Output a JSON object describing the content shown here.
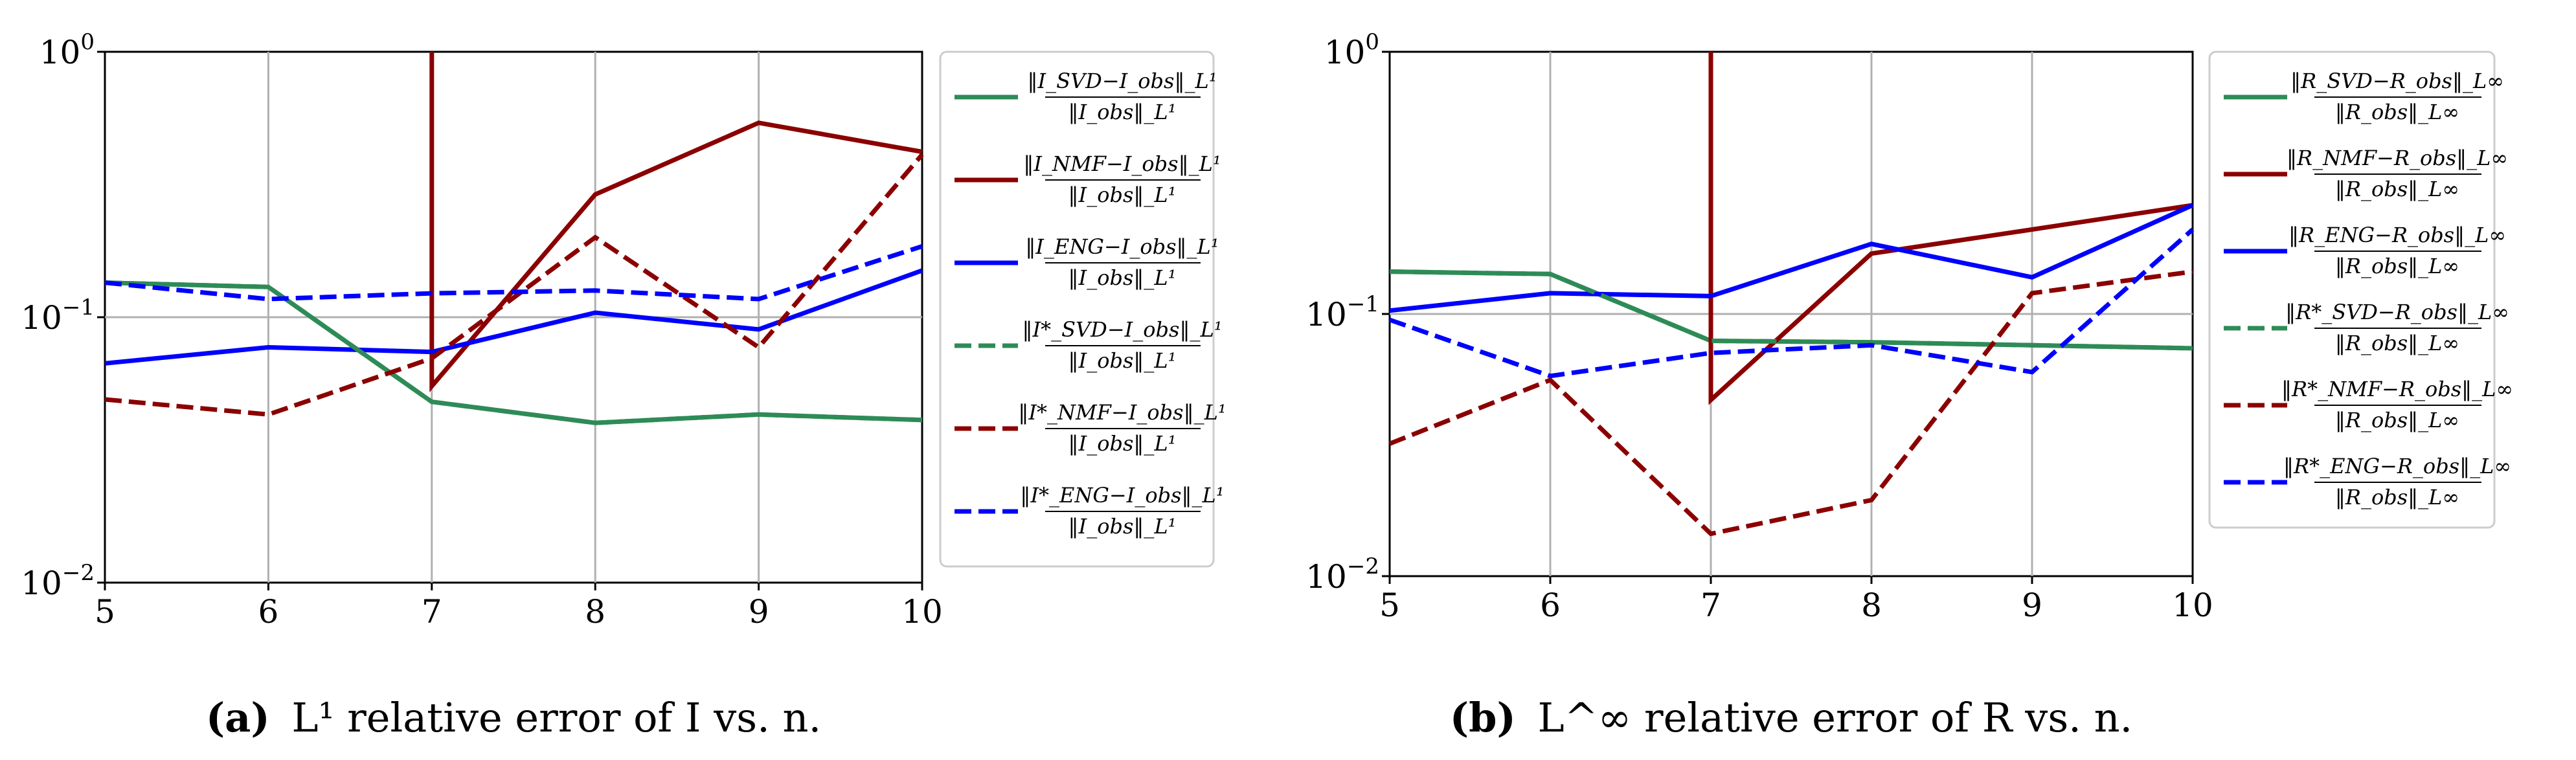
{
  "chart_data": [
    {
      "type": "line",
      "x": [
        5,
        6,
        7,
        8,
        9,
        10
      ],
      "yscale": "log",
      "ylim": [
        0.01,
        1
      ],
      "xlim": [
        5,
        10
      ],
      "yticks": [
        {
          "exp": "0",
          "value": 1
        },
        {
          "exp": "−1",
          "value": 0.1
        },
        {
          "exp": "−2",
          "value": 0.01
        }
      ],
      "xticks": [
        "5",
        "6",
        "7",
        "8",
        "9",
        "10"
      ],
      "grid": true,
      "legend_position": "outside-right",
      "caption": {
        "label": "(a)",
        "text": "L¹ relative error of I vs. n."
      },
      "series": [
        {
          "name": "‖I_SVD − I_obs‖_L¹ / ‖I_obs‖_L¹",
          "color": "#2e8b57",
          "style": "solid",
          "values": [
            0.135,
            0.13,
            0.048,
            0.04,
            0.043,
            0.041
          ]
        },
        {
          "name": "‖I_NMF − I_obs‖_L¹ / ‖I_obs‖_L¹",
          "color": "#8b0000",
          "style": "solid",
          "values": [
            null,
            null,
            [
              1.0,
              0.055
            ],
            0.29,
            0.54,
            0.42
          ]
        },
        {
          "name": "‖I_ENG − I_obs‖_L¹ / ‖I_obs‖_L¹",
          "color": "#0000ff",
          "style": "solid",
          "values": [
            0.067,
            0.077,
            0.074,
            0.104,
            0.09,
            0.15
          ]
        },
        {
          "name": "‖I*_SVD − I_obs‖_L¹ / ‖I_obs‖_L¹",
          "color": "#2e8b57",
          "style": "dashed",
          "values": [
            0.135,
            0.13,
            0.048,
            0.04,
            0.043,
            0.041
          ]
        },
        {
          "name": "‖I*_NMF − I_obs‖_L¹ / ‖I_obs‖_L¹",
          "color": "#8b0000",
          "style": "dashed",
          "values": [
            0.049,
            0.043,
            0.07,
            0.2,
            0.077,
            0.41
          ]
        },
        {
          "name": "‖I*_ENG − I_obs‖_L¹ / ‖I_obs‖_L¹",
          "color": "#0000ff",
          "style": "dashed",
          "values": [
            0.135,
            0.117,
            0.123,
            0.126,
            0.117,
            0.185
          ]
        }
      ],
      "legend": [
        {
          "num": "‖I_SVD−I_obs‖_L¹",
          "den": "‖I_obs‖_L¹"
        },
        {
          "num": "‖I_NMF−I_obs‖_L¹",
          "den": "‖I_obs‖_L¹"
        },
        {
          "num": "‖I_ENG−I_obs‖_L¹",
          "den": "‖I_obs‖_L¹"
        },
        {
          "num": "‖I*_SVD−I_obs‖_L¹",
          "den": "‖I_obs‖_L¹"
        },
        {
          "num": "‖I*_NMF−I_obs‖_L¹",
          "den": "‖I_obs‖_L¹"
        },
        {
          "num": "‖I*_ENG−I_obs‖_L¹",
          "den": "‖I_obs‖_L¹"
        }
      ]
    },
    {
      "type": "line",
      "x": [
        5,
        6,
        7,
        8,
        9,
        10
      ],
      "yscale": "log",
      "ylim": [
        0.01,
        1
      ],
      "xlim": [
        5,
        10
      ],
      "yticks": [
        {
          "exp": "0",
          "value": 1
        },
        {
          "exp": "−1",
          "value": 0.1
        },
        {
          "exp": "−2",
          "value": 0.01
        }
      ],
      "xticks": [
        "5",
        "6",
        "7",
        "8",
        "9",
        "10"
      ],
      "grid": true,
      "legend_position": "outside-right",
      "caption": {
        "label": "(b)",
        "text": "L^∞ relative error of R vs. n."
      },
      "series": [
        {
          "name": "‖R_SVD − R_obs‖_L∞ / ‖R_obs‖_L∞",
          "color": "#2e8b57",
          "style": "solid",
          "values": [
            0.145,
            0.142,
            0.079,
            0.078,
            0.076,
            0.074
          ]
        },
        {
          "name": "‖R_NMF − R_obs‖_L∞ / ‖R_obs‖_L∞",
          "color": "#8b0000",
          "style": "solid",
          "values": [
            null,
            null,
            [
              1.0,
              0.047
            ],
            0.17,
            0.21,
            0.26
          ]
        },
        {
          "name": "‖R_ENG − R_obs‖_L∞ / ‖R_obs‖_L∞",
          "color": "#0000ff",
          "style": "solid",
          "values": [
            0.103,
            0.12,
            0.117,
            0.185,
            0.138,
            0.26
          ]
        },
        {
          "name": "‖R*_SVD − R_obs‖_L∞ / ‖R_obs‖_L∞",
          "color": "#2e8b57",
          "style": "dashed",
          "values": [
            0.145,
            0.142,
            0.079,
            0.078,
            0.076,
            0.074
          ]
        },
        {
          "name": "‖R*_NMF − R_obs‖_L∞ / ‖R_obs‖_L∞",
          "color": "#8b0000",
          "style": "dashed",
          "values": [
            0.032,
            0.056,
            0.0145,
            0.0195,
            0.12,
            0.145
          ]
        },
        {
          "name": "‖R*_ENG − R_obs‖_L∞ / ‖R_obs‖_L∞",
          "color": "#0000ff",
          "style": "dashed",
          "values": [
            0.095,
            0.058,
            0.071,
            0.076,
            0.06,
            0.21
          ]
        }
      ],
      "legend": [
        {
          "num": "‖R_SVD−R_obs‖_L∞",
          "den": "‖R_obs‖_L∞"
        },
        {
          "num": "‖R_NMF−R_obs‖_L∞",
          "den": "‖R_obs‖_L∞"
        },
        {
          "num": "‖R_ENG−R_obs‖_L∞",
          "den": "‖R_obs‖_L∞"
        },
        {
          "num": "‖R*_SVD−R_obs‖_L∞",
          "den": "‖R_obs‖_L∞"
        },
        {
          "num": "‖R*_NMF−R_obs‖_L∞",
          "den": "‖R_obs‖_L∞"
        },
        {
          "num": "‖R*_ENG−R_obs‖_L∞",
          "den": "‖R_obs‖_L∞"
        }
      ]
    }
  ]
}
